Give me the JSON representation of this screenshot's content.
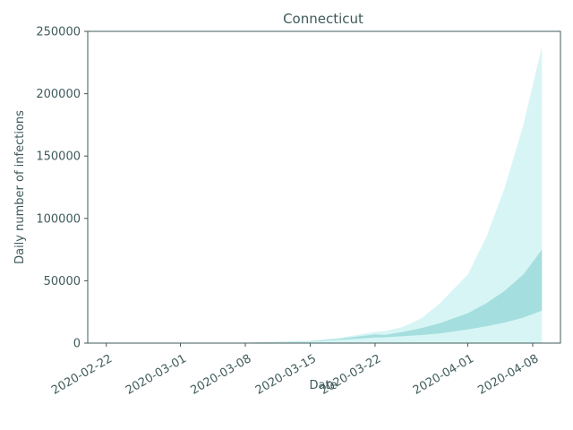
{
  "chart_data": {
    "type": "area",
    "title": "Connecticut",
    "xlabel": "Date",
    "ylabel": "Daily number of infections",
    "x_ticks": [
      "2020-02-22",
      "2020-03-01",
      "2020-03-08",
      "2020-03-15",
      "2020-03-22",
      "2020-04-01",
      "2020-04-08"
    ],
    "xlim": [
      "2020-02-20",
      "2020-04-11"
    ],
    "ylim": [
      0,
      250000
    ],
    "y_ticks": [
      0,
      50000,
      100000,
      150000,
      200000,
      250000
    ],
    "grid": false,
    "colors": {
      "outer_band": "#b2ebeb",
      "inner_band": "#7ccbcb",
      "axis": "#3f5a5a"
    },
    "x": [
      "2020-02-22",
      "2020-03-01",
      "2020-03-08",
      "2020-03-15",
      "2020-03-18",
      "2020-03-22",
      "2020-03-23",
      "2020-03-25",
      "2020-03-27",
      "2020-03-29",
      "2020-04-01",
      "2020-04-03",
      "2020-04-05",
      "2020-04-07",
      "2020-04-09"
    ],
    "series": [
      {
        "band": "outer",
        "lower": [
          0,
          0,
          0,
          0,
          0,
          0,
          0,
          0,
          0,
          0,
          0,
          0,
          0,
          0,
          0
        ],
        "upper": [
          0,
          100,
          300,
          1800,
          4000,
          9000,
          9500,
          13000,
          20000,
          32000,
          55000,
          85000,
          125000,
          175000,
          238000
        ]
      },
      {
        "band": "inner",
        "lower": [
          0,
          50,
          200,
          1200,
          2500,
          4500,
          4600,
          5500,
          6500,
          7800,
          11000,
          13500,
          16500,
          20500,
          26000
        ],
        "upper": [
          0,
          100,
          300,
          1600,
          3200,
          7000,
          6500,
          9000,
          12000,
          16000,
          24000,
          32000,
          42000,
          55000,
          75000
        ]
      }
    ]
  }
}
